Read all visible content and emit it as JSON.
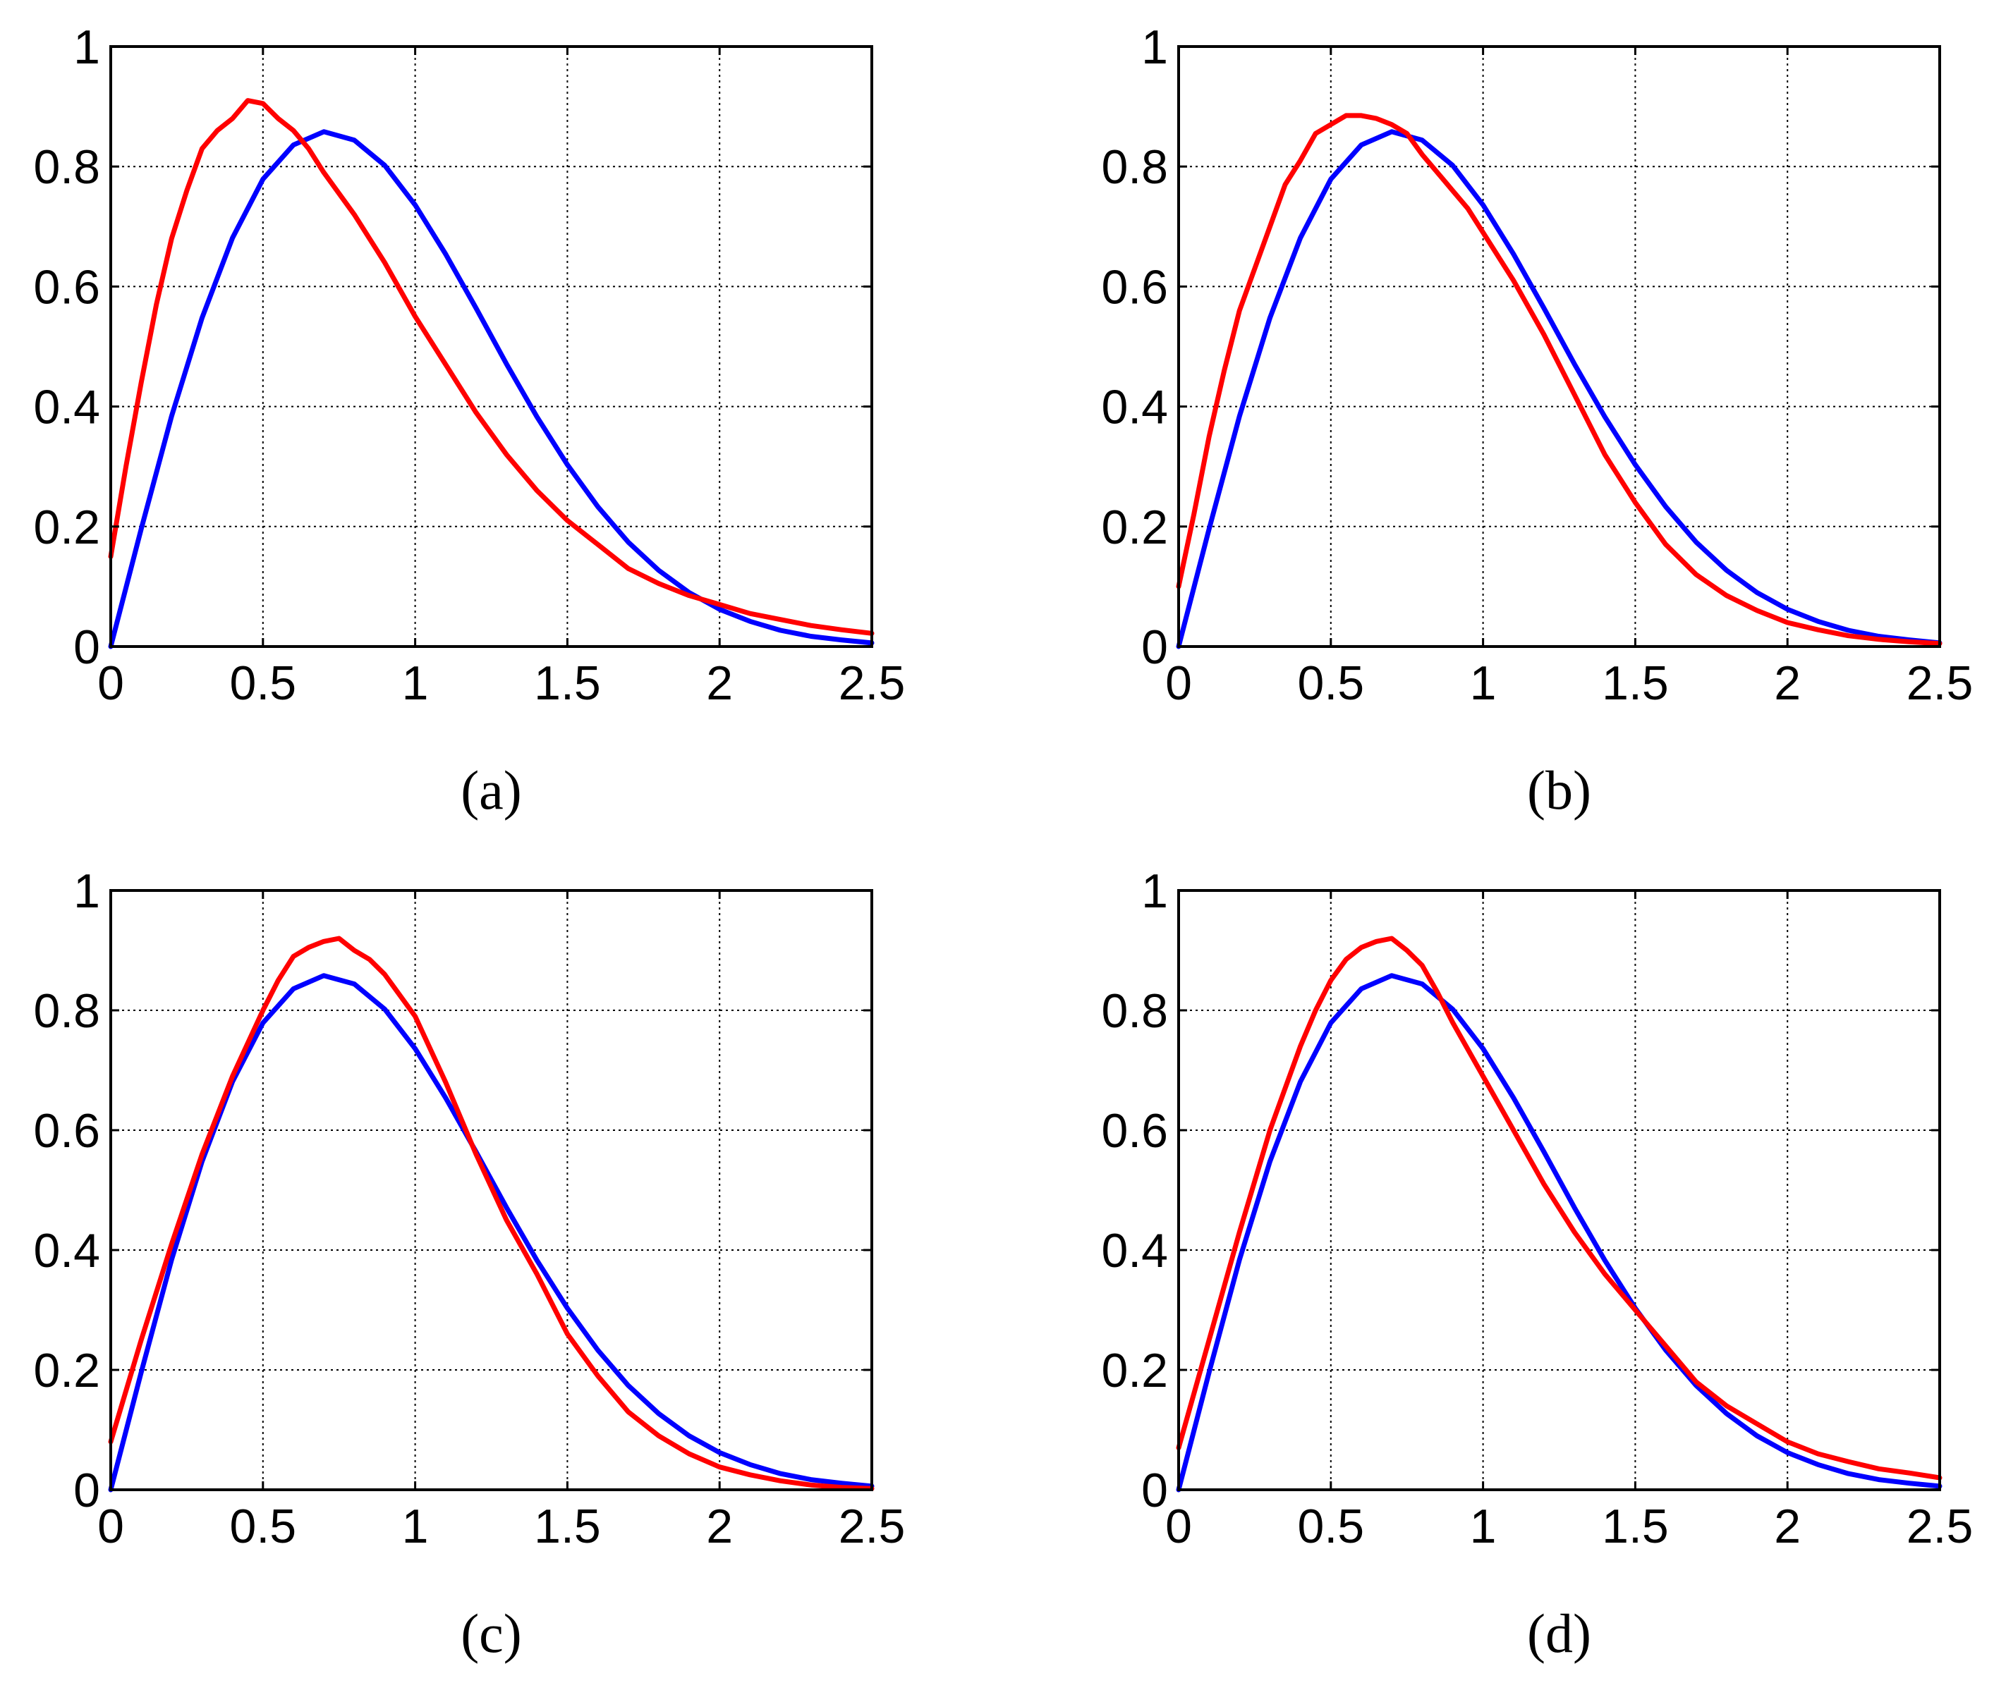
{
  "chart_data": [
    {
      "type": "line",
      "caption": "(a)",
      "xlim": [
        0,
        2.5
      ],
      "ylim": [
        0,
        1
      ],
      "x_ticks": [
        "0",
        "0.5",
        "1",
        "1.5",
        "2",
        "2.5"
      ],
      "y_ticks": [
        "0",
        "0.2",
        "0.4",
        "0.6",
        "0.8",
        "1"
      ],
      "grid": true,
      "series": [
        {
          "color": "#0000ff",
          "x": [
            0,
            0.1,
            0.2,
            0.3,
            0.4,
            0.5,
            0.6,
            0.7,
            0.8,
            0.9,
            1.0,
            1.1,
            1.2,
            1.3,
            1.4,
            1.5,
            1.6,
            1.7,
            1.8,
            1.9,
            2.0,
            2.1,
            2.2,
            2.3,
            2.4,
            2.5
          ],
          "y": [
            0,
            0.196,
            0.384,
            0.548,
            0.681,
            0.779,
            0.836,
            0.858,
            0.844,
            0.802,
            0.736,
            0.654,
            0.564,
            0.471,
            0.383,
            0.303,
            0.233,
            0.174,
            0.127,
            0.09,
            0.062,
            0.042,
            0.027,
            0.017,
            0.011,
            0.006
          ]
        },
        {
          "color": "#ff0000",
          "x": [
            0,
            0.05,
            0.1,
            0.15,
            0.2,
            0.25,
            0.3,
            0.35,
            0.4,
            0.45,
            0.5,
            0.55,
            0.6,
            0.65,
            0.7,
            0.8,
            0.9,
            1.0,
            1.1,
            1.2,
            1.3,
            1.4,
            1.5,
            1.6,
            1.7,
            1.8,
            1.9,
            2.0,
            2.1,
            2.2,
            2.3,
            2.4,
            2.5
          ],
          "y": [
            0.15,
            0.3,
            0.44,
            0.57,
            0.68,
            0.76,
            0.83,
            0.86,
            0.88,
            0.91,
            0.905,
            0.88,
            0.86,
            0.83,
            0.79,
            0.72,
            0.64,
            0.55,
            0.47,
            0.39,
            0.32,
            0.26,
            0.21,
            0.17,
            0.13,
            0.105,
            0.085,
            0.07,
            0.055,
            0.045,
            0.035,
            0.028,
            0.022
          ]
        }
      ]
    },
    {
      "type": "line",
      "caption": "(b)",
      "xlim": [
        0,
        2.5
      ],
      "ylim": [
        0,
        1
      ],
      "x_ticks": [
        "0",
        "0.5",
        "1",
        "1.5",
        "2",
        "2.5"
      ],
      "y_ticks": [
        "0",
        "0.2",
        "0.4",
        "0.6",
        "0.8",
        "1"
      ],
      "grid": true,
      "series": [
        {
          "color": "#0000ff",
          "x": [
            0,
            0.1,
            0.2,
            0.3,
            0.4,
            0.5,
            0.6,
            0.7,
            0.8,
            0.9,
            1.0,
            1.1,
            1.2,
            1.3,
            1.4,
            1.5,
            1.6,
            1.7,
            1.8,
            1.9,
            2.0,
            2.1,
            2.2,
            2.3,
            2.4,
            2.5
          ],
          "y": [
            0,
            0.196,
            0.384,
            0.548,
            0.681,
            0.779,
            0.836,
            0.858,
            0.844,
            0.802,
            0.736,
            0.654,
            0.564,
            0.471,
            0.383,
            0.303,
            0.233,
            0.174,
            0.127,
            0.09,
            0.062,
            0.042,
            0.027,
            0.017,
            0.011,
            0.006
          ]
        },
        {
          "color": "#ff0000",
          "x": [
            0,
            0.05,
            0.1,
            0.15,
            0.2,
            0.25,
            0.3,
            0.35,
            0.4,
            0.45,
            0.5,
            0.55,
            0.6,
            0.65,
            0.7,
            0.75,
            0.8,
            0.85,
            0.9,
            0.95,
            1.0,
            1.1,
            1.2,
            1.3,
            1.4,
            1.5,
            1.6,
            1.7,
            1.8,
            1.9,
            2.0,
            2.1,
            2.2,
            2.3,
            2.4,
            2.5
          ],
          "y": [
            0.1,
            0.22,
            0.35,
            0.46,
            0.56,
            0.63,
            0.7,
            0.77,
            0.81,
            0.855,
            0.87,
            0.885,
            0.885,
            0.88,
            0.87,
            0.855,
            0.82,
            0.79,
            0.76,
            0.73,
            0.69,
            0.61,
            0.52,
            0.42,
            0.32,
            0.24,
            0.17,
            0.12,
            0.085,
            0.06,
            0.04,
            0.028,
            0.018,
            0.012,
            0.008,
            0.005
          ]
        }
      ]
    },
    {
      "type": "line",
      "caption": "(c)",
      "xlim": [
        0,
        2.5
      ],
      "ylim": [
        0,
        1
      ],
      "x_ticks": [
        "0",
        "0.5",
        "1",
        "1.5",
        "2",
        "2.5"
      ],
      "y_ticks": [
        "0",
        "0.2",
        "0.4",
        "0.6",
        "0.8",
        "1"
      ],
      "grid": true,
      "series": [
        {
          "color": "#0000ff",
          "x": [
            0,
            0.1,
            0.2,
            0.3,
            0.4,
            0.5,
            0.6,
            0.7,
            0.8,
            0.9,
            1.0,
            1.1,
            1.2,
            1.3,
            1.4,
            1.5,
            1.6,
            1.7,
            1.8,
            1.9,
            2.0,
            2.1,
            2.2,
            2.3,
            2.4,
            2.5
          ],
          "y": [
            0,
            0.196,
            0.384,
            0.548,
            0.681,
            0.779,
            0.836,
            0.858,
            0.844,
            0.802,
            0.736,
            0.654,
            0.564,
            0.471,
            0.383,
            0.303,
            0.233,
            0.174,
            0.127,
            0.09,
            0.062,
            0.042,
            0.027,
            0.017,
            0.011,
            0.006
          ]
        },
        {
          "color": "#ff0000",
          "x": [
            0,
            0.1,
            0.2,
            0.3,
            0.4,
            0.5,
            0.55,
            0.6,
            0.65,
            0.7,
            0.75,
            0.8,
            0.85,
            0.9,
            1.0,
            1.1,
            1.2,
            1.3,
            1.4,
            1.5,
            1.6,
            1.7,
            1.8,
            1.9,
            2.0,
            2.1,
            2.2,
            2.3,
            2.4,
            2.5
          ],
          "y": [
            0.08,
            0.25,
            0.41,
            0.56,
            0.69,
            0.8,
            0.85,
            0.89,
            0.905,
            0.915,
            0.92,
            0.9,
            0.885,
            0.86,
            0.79,
            0.68,
            0.56,
            0.45,
            0.36,
            0.26,
            0.19,
            0.13,
            0.09,
            0.06,
            0.038,
            0.025,
            0.015,
            0.008,
            0.004,
            0.002
          ]
        }
      ]
    },
    {
      "type": "line",
      "caption": "(d)",
      "xlim": [
        0,
        2.5
      ],
      "ylim": [
        0,
        1
      ],
      "x_ticks": [
        "0",
        "0.5",
        "1",
        "1.5",
        "2",
        "2.5"
      ],
      "y_ticks": [
        "0",
        "0.2",
        "0.4",
        "0.6",
        "0.8",
        "1"
      ],
      "grid": true,
      "series": [
        {
          "color": "#0000ff",
          "x": [
            0,
            0.1,
            0.2,
            0.3,
            0.4,
            0.5,
            0.6,
            0.7,
            0.8,
            0.9,
            1.0,
            1.1,
            1.2,
            1.3,
            1.4,
            1.5,
            1.6,
            1.7,
            1.8,
            1.9,
            2.0,
            2.1,
            2.2,
            2.3,
            2.4,
            2.5
          ],
          "y": [
            0,
            0.196,
            0.384,
            0.548,
            0.681,
            0.779,
            0.836,
            0.858,
            0.844,
            0.802,
            0.736,
            0.654,
            0.564,
            0.471,
            0.383,
            0.303,
            0.233,
            0.174,
            0.127,
            0.09,
            0.062,
            0.042,
            0.027,
            0.017,
            0.011,
            0.006
          ]
        },
        {
          "color": "#ff0000",
          "x": [
            0,
            0.1,
            0.2,
            0.3,
            0.4,
            0.45,
            0.5,
            0.55,
            0.6,
            0.65,
            0.7,
            0.75,
            0.8,
            0.85,
            0.9,
            1.0,
            1.1,
            1.2,
            1.3,
            1.4,
            1.5,
            1.6,
            1.7,
            1.8,
            1.9,
            2.0,
            2.1,
            2.2,
            2.3,
            2.4,
            2.5
          ],
          "y": [
            0.07,
            0.25,
            0.43,
            0.6,
            0.74,
            0.8,
            0.85,
            0.885,
            0.905,
            0.915,
            0.92,
            0.9,
            0.875,
            0.83,
            0.78,
            0.69,
            0.6,
            0.51,
            0.43,
            0.36,
            0.3,
            0.24,
            0.18,
            0.14,
            0.11,
            0.08,
            0.06,
            0.047,
            0.035,
            0.028,
            0.02
          ]
        }
      ]
    }
  ]
}
